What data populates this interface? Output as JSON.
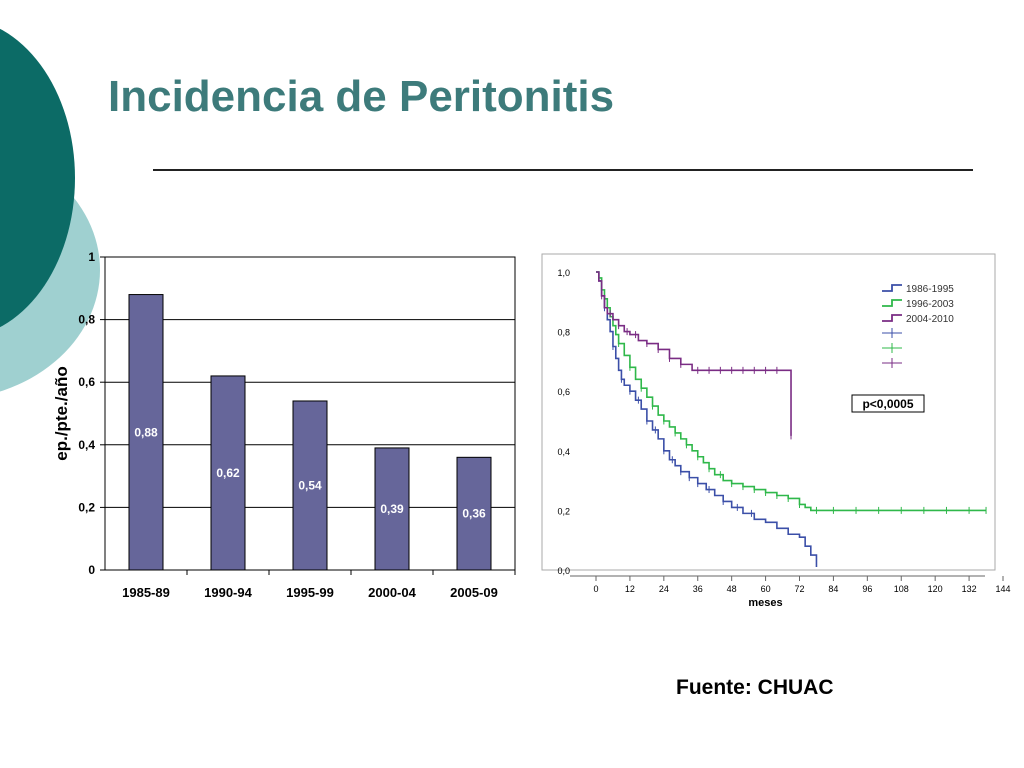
{
  "slide": {
    "title": "Incidencia de Peritonitis",
    "source": "Fuente: CHUAC"
  },
  "colors": {
    "title": "#3d7b7b",
    "deco_dark": "#0c6b66",
    "deco_light": "#9fd0d0",
    "bar_fill": "#66669a",
    "series_1986": "#3b4fa8",
    "series_1996": "#2fb84a",
    "series_2004": "#7a2c84"
  },
  "chart_data": [
    {
      "type": "bar",
      "categories": [
        "1985-89",
        "1990-94",
        "1995-99",
        "2000-04",
        "2005-09"
      ],
      "values": [
        0.88,
        0.62,
        0.54,
        0.39,
        0.36
      ],
      "value_labels": [
        "0,88",
        "0,62",
        "0,54",
        "0,39",
        "0,36"
      ],
      "ylabel": "ep./pte./año",
      "ylim": [
        0,
        1
      ],
      "yticks": [
        0,
        0.2,
        0.4,
        0.6,
        0.8,
        1
      ],
      "ytick_labels": [
        "0",
        "0,2",
        "0,4",
        "0,6",
        "0,8",
        "1"
      ],
      "grid": true
    },
    {
      "type": "line",
      "subtype": "kaplan-meier step curves",
      "xlabel": "meses",
      "xlim": [
        0,
        144
      ],
      "ylim": [
        0,
        1
      ],
      "xticks": [
        0,
        12,
        24,
        36,
        48,
        60,
        72,
        84,
        96,
        108,
        120,
        132,
        144
      ],
      "xtick_labels": [
        "0",
        "12",
        "24",
        "36",
        "48",
        "60",
        "72",
        "84",
        "96",
        "108",
        "120",
        "132",
        "144"
      ],
      "yticks": [
        0,
        0.2,
        0.4,
        0.6,
        0.8,
        1
      ],
      "ytick_labels": [
        "0,0",
        "0,2",
        "0,4",
        "0,6",
        "0,8",
        "1,0"
      ],
      "legend_position": "top-right",
      "annotation": "p<0,0005",
      "series": [
        {
          "name": "1986-1995",
          "color_key": "series_1986",
          "x": [
            0,
            1,
            2,
            3,
            4,
            5,
            6,
            7,
            8,
            9,
            10,
            12,
            14,
            16,
            18,
            20,
            22,
            24,
            26,
            28,
            30,
            33,
            36,
            39,
            42,
            45,
            48,
            52,
            56,
            60,
            64,
            68,
            72,
            74,
            76,
            78
          ],
          "y": [
            1.0,
            0.97,
            0.92,
            0.88,
            0.84,
            0.8,
            0.75,
            0.71,
            0.67,
            0.64,
            0.62,
            0.6,
            0.57,
            0.54,
            0.5,
            0.47,
            0.44,
            0.4,
            0.37,
            0.35,
            0.33,
            0.31,
            0.29,
            0.27,
            0.25,
            0.23,
            0.21,
            0.19,
            0.17,
            0.16,
            0.14,
            0.12,
            0.11,
            0.08,
            0.05,
            0.01
          ],
          "censor_x": [
            3,
            6,
            9,
            12,
            15,
            18,
            21,
            24,
            27,
            30,
            33,
            36,
            40,
            45,
            50,
            55
          ]
        },
        {
          "name": "1996-2003",
          "color_key": "series_1996",
          "x": [
            0,
            1,
            2,
            3,
            4,
            5,
            6,
            7,
            8,
            10,
            12,
            14,
            16,
            18,
            20,
            22,
            24,
            26,
            28,
            30,
            32,
            34,
            36,
            38,
            40,
            42,
            45,
            48,
            52,
            56,
            60,
            64,
            68,
            72,
            74,
            76,
            80,
            138
          ],
          "y": [
            1.0,
            0.98,
            0.94,
            0.91,
            0.88,
            0.85,
            0.82,
            0.79,
            0.76,
            0.72,
            0.68,
            0.64,
            0.61,
            0.58,
            0.55,
            0.52,
            0.5,
            0.48,
            0.46,
            0.44,
            0.42,
            0.4,
            0.38,
            0.36,
            0.34,
            0.32,
            0.3,
            0.29,
            0.28,
            0.27,
            0.26,
            0.25,
            0.24,
            0.22,
            0.21,
            0.2,
            0.2,
            0.2
          ],
          "censor_x": [
            4,
            8,
            12,
            16,
            20,
            24,
            28,
            32,
            36,
            40,
            44,
            48,
            52,
            56,
            60,
            64,
            68,
            72,
            78,
            84,
            92,
            100,
            108,
            116,
            124,
            132,
            138
          ]
        },
        {
          "name": "2004-2010",
          "color_key": "series_2004",
          "x": [
            0,
            1,
            2,
            3,
            4,
            6,
            8,
            10,
            12,
            15,
            18,
            22,
            26,
            30,
            34,
            68,
            69
          ],
          "y": [
            1.0,
            0.97,
            0.92,
            0.88,
            0.86,
            0.84,
            0.82,
            0.8,
            0.79,
            0.77,
            0.76,
            0.74,
            0.71,
            0.69,
            0.67,
            0.67,
            0.45
          ],
          "censor_x": [
            2,
            5,
            8,
            11,
            14,
            18,
            22,
            26,
            30,
            36,
            40,
            44,
            48,
            52,
            56,
            60,
            64,
            69
          ]
        }
      ]
    }
  ]
}
